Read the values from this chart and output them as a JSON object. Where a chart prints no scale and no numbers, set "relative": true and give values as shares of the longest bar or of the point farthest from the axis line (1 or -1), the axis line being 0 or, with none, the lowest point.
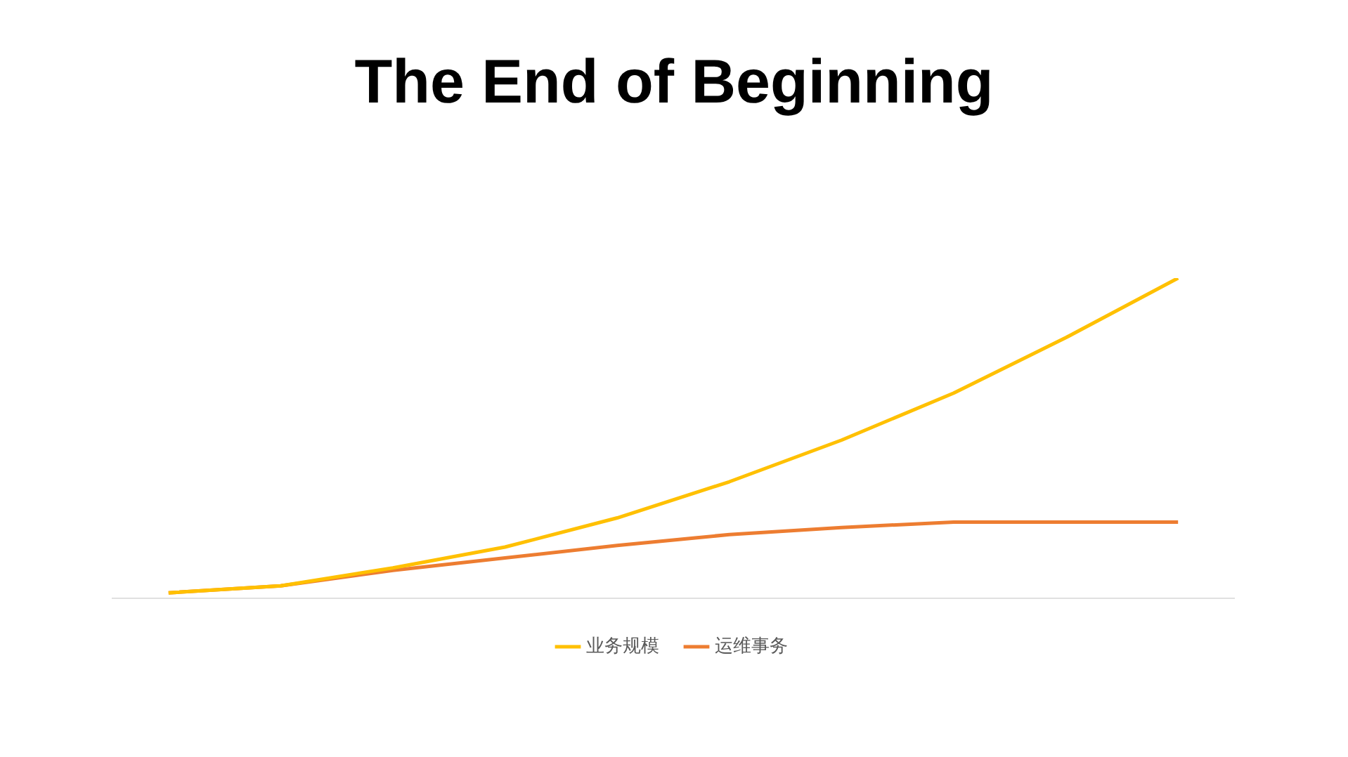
{
  "chart_data": {
    "type": "line",
    "title": "The End of Beginning",
    "relative": true,
    "legend": "bottom",
    "marker": "none",
    "line_style": "solid",
    "categories": [
      null,
      null,
      null,
      null,
      null,
      null,
      null,
      null,
      null,
      null
    ],
    "series": [
      {
        "name": "业务规模",
        "color": "#ffc000",
        "values": [
          0.017,
          0.039,
          0.095,
          0.16,
          0.251,
          0.364,
          0.494,
          0.641,
          0.814,
          1
        ]
      },
      {
        "name": "运维事务",
        "color": "#ed7d31",
        "values": [
          0.017,
          0.039,
          0.087,
          0.126,
          0.165,
          0.199,
          0.221,
          0.238,
          0.238,
          0.238
        ]
      }
    ]
  }
}
